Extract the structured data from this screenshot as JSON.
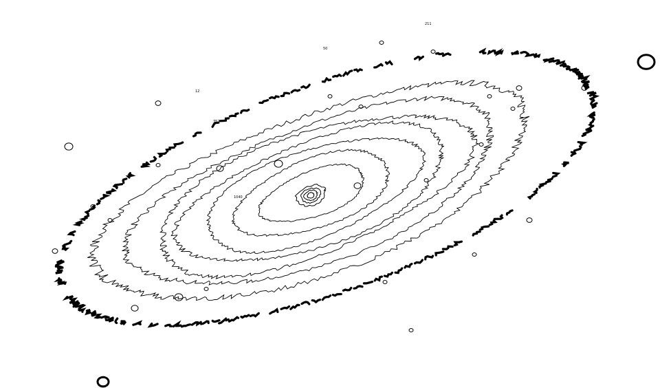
{
  "figure": {
    "kind": "isophote contour map of an inclined galaxy",
    "background_color": "#ffffff",
    "line_color": "#000000",
    "contours": [
      {
        "level": "outermost",
        "style": "thick dashed"
      },
      {
        "level": "1"
      },
      {
        "level": "2"
      },
      {
        "level": "3"
      },
      {
        "level": "4"
      },
      {
        "level": "5"
      },
      {
        "level": "6"
      },
      {
        "level": "7"
      },
      {
        "level": "core",
        "count": 4
      }
    ],
    "labels": [
      "1040",
      "211",
      "50",
      "12",
      "352"
    ]
  }
}
